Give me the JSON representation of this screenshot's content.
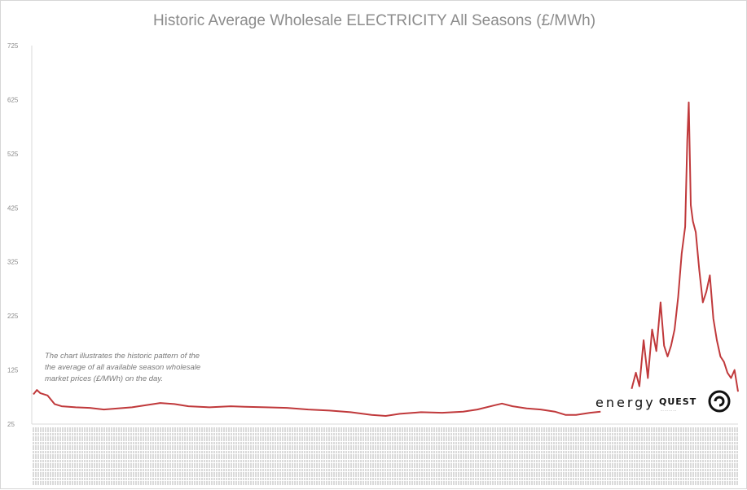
{
  "chart_data": {
    "type": "line",
    "title": "Historic Average Wholesale ELECTRICITY All Seasons (£/MWh)",
    "xlabel": "",
    "ylabel": "",
    "ylim": [
      25,
      725
    ],
    "yticks": [
      25,
      125,
      225,
      325,
      425,
      525,
      625,
      725
    ],
    "grid": false,
    "legend": "none",
    "series_color": "#c0393b",
    "annotation": "The chart illustrates the historic pattern of the the average of all available season wholesale market prices (£/MWh) on the day.",
    "series": [
      {
        "points": [
          [
            0,
            80
          ],
          [
            0.005,
            88
          ],
          [
            0.01,
            82
          ],
          [
            0.02,
            78
          ],
          [
            0.03,
            62
          ],
          [
            0.04,
            58
          ],
          [
            0.06,
            56
          ],
          [
            0.08,
            55
          ],
          [
            0.1,
            52
          ],
          [
            0.12,
            54
          ],
          [
            0.14,
            56
          ],
          [
            0.16,
            60
          ],
          [
            0.18,
            64
          ],
          [
            0.2,
            62
          ],
          [
            0.22,
            58
          ],
          [
            0.25,
            56
          ],
          [
            0.28,
            58
          ],
          [
            0.3,
            57
          ],
          [
            0.33,
            56
          ],
          [
            0.36,
            55
          ],
          [
            0.39,
            52
          ],
          [
            0.42,
            50
          ],
          [
            0.45,
            47
          ],
          [
            0.48,
            42
          ],
          [
            0.5,
            40
          ],
          [
            0.52,
            44
          ],
          [
            0.55,
            47
          ],
          [
            0.58,
            46
          ],
          [
            0.61,
            48
          ],
          [
            0.63,
            52
          ],
          [
            0.655,
            60
          ],
          [
            0.665,
            63
          ],
          [
            0.68,
            58
          ],
          [
            0.7,
            54
          ],
          [
            0.72,
            52
          ],
          [
            0.74,
            48
          ],
          [
            0.755,
            42
          ],
          [
            0.77,
            42
          ],
          [
            0.79,
            46
          ],
          [
            0.805,
            48
          ]
        ]
      },
      {
        "points": [
          [
            0.849,
            90
          ],
          [
            0.855,
            120
          ],
          [
            0.86,
            95
          ],
          [
            0.866,
            180
          ],
          [
            0.872,
            110
          ],
          [
            0.878,
            200
          ],
          [
            0.884,
            160
          ],
          [
            0.89,
            250
          ],
          [
            0.895,
            170
          ],
          [
            0.9,
            150
          ],
          [
            0.905,
            170
          ],
          [
            0.91,
            200
          ],
          [
            0.915,
            260
          ],
          [
            0.92,
            340
          ],
          [
            0.925,
            390
          ],
          [
            0.928,
            550
          ],
          [
            0.93,
            620
          ],
          [
            0.933,
            430
          ],
          [
            0.936,
            400
          ],
          [
            0.94,
            380
          ],
          [
            0.945,
            310
          ],
          [
            0.95,
            250
          ],
          [
            0.955,
            270
          ],
          [
            0.96,
            300
          ],
          [
            0.965,
            220
          ],
          [
            0.97,
            180
          ],
          [
            0.975,
            150
          ],
          [
            0.98,
            140
          ],
          [
            0.985,
            120
          ],
          [
            0.99,
            110
          ],
          [
            0.995,
            125
          ],
          [
            1.0,
            85
          ]
        ]
      }
    ]
  },
  "logo": {
    "word": "energy",
    "quest": "QUEST",
    "tagline": "... ... ... ..."
  }
}
